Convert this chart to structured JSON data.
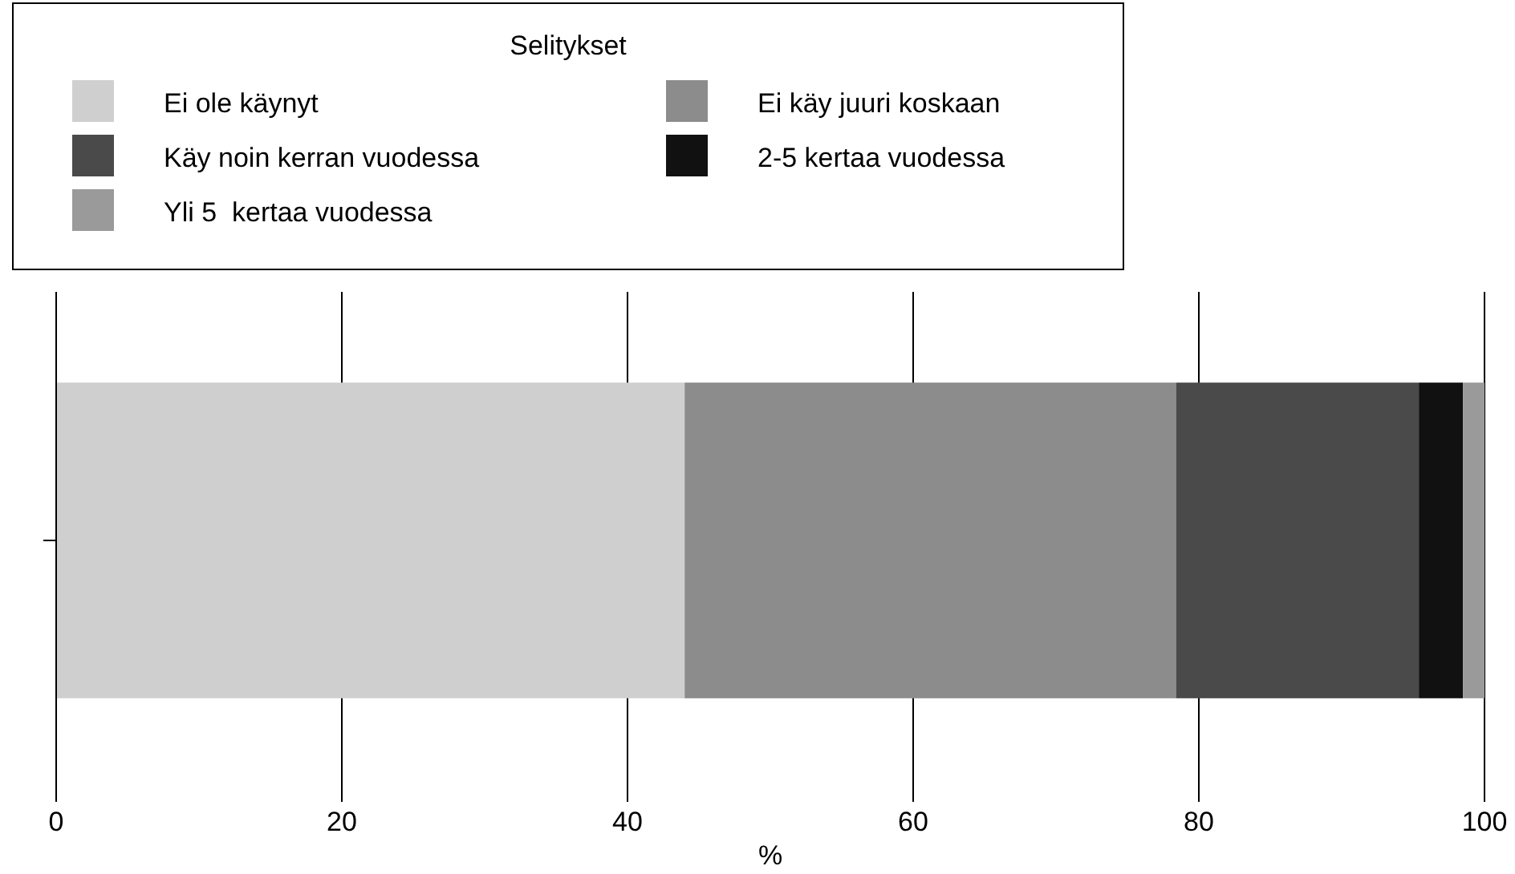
{
  "chart_data": {
    "type": "bar",
    "orientation": "horizontal",
    "stacked": true,
    "categories": [
      null
    ],
    "xlabel": "%",
    "legend_title": "Selitykset",
    "legend": "top",
    "series": [
      {
        "name": "Ei ole käynyt",
        "color": "#cfcfcf",
        "values": [
          44.0
        ]
      },
      {
        "name": "Ei käy juuri koskaan",
        "color": "#8c8c8c",
        "values": [
          34.4
        ]
      },
      {
        "name": "Käy noin kerran vuodessa",
        "color": "#4a4a4a",
        "values": [
          17.0
        ]
      },
      {
        "name": "2-5 kertaa vuodessa",
        "color": "#111111",
        "values": [
          3.1
        ]
      },
      {
        "name": "Yli 5  kertaa vuodessa",
        "color": "#9a9a9a",
        "values": [
          1.5
        ]
      }
    ],
    "xlim": [
      0,
      100
    ],
    "xticks": [
      0,
      20,
      40,
      60,
      80,
      100
    ],
    "grid": "x"
  }
}
